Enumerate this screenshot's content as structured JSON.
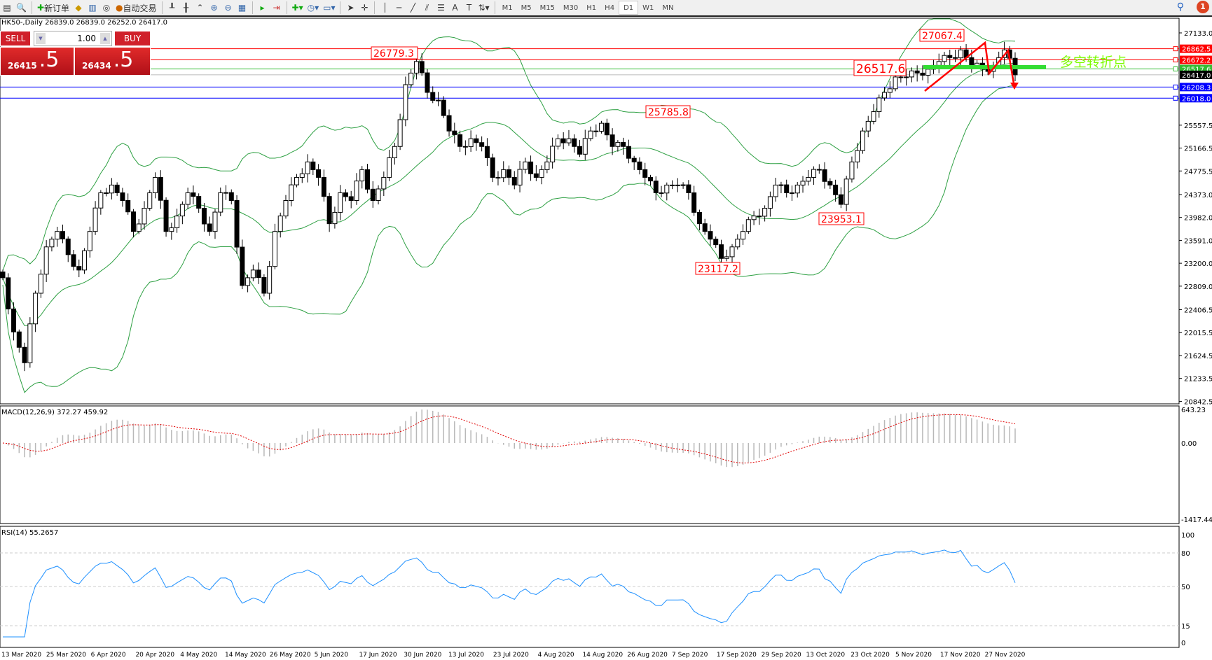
{
  "toolbar": {
    "new_order": "新订单",
    "auto_trading": "自动交易",
    "timeframes": [
      "M1",
      "M5",
      "M15",
      "M30",
      "H1",
      "H4",
      "D1",
      "W1",
      "MN"
    ],
    "active_timeframe": "D1",
    "notifications": "1"
  },
  "chart": {
    "title": "HK50-,Daily",
    "ohlc": "26839.0 26839.0 26252.0 26417.0"
  },
  "oneclick": {
    "sell_label": "SELL",
    "buy_label": "BUY",
    "lot": "1.00",
    "sell_main": "26415",
    "sell_frac": ".5",
    "buy_main": "26434",
    "buy_frac": ".5"
  },
  "colors": {
    "up_line": "#ff0000",
    "support": "#0000ff",
    "pivot": "#33bb33",
    "bands": "#2ea043",
    "macd_signal": "#e00000",
    "rsi": "#1e90ff"
  },
  "annotation": "多空转折点",
  "price_labels": [
    {
      "text": "26779.3"
    },
    {
      "text": "27067.4"
    },
    {
      "text": "26517.6"
    },
    {
      "text": "25785.8"
    },
    {
      "text": "23953.1"
    },
    {
      "text": "23117.2"
    }
  ],
  "hlines": [
    {
      "price": 26862.5,
      "label": "26862.5",
      "color": "#ff0000"
    },
    {
      "price": 26672.2,
      "label": "26672.2",
      "color": "#ff0000"
    },
    {
      "price": 26517.6,
      "label": "26517.6",
      "color": "#33bb33"
    },
    {
      "price": 26417.0,
      "label": "26417.0",
      "color": "#000000"
    },
    {
      "price": 26208.3,
      "label": "26208.3",
      "color": "#0000ff"
    },
    {
      "price": 26018.0,
      "label": "26018.0",
      "color": "#0000ff"
    }
  ],
  "price_axis": [
    "27133.0",
    "25557.5",
    "25166.5",
    "24775.5",
    "24373.0",
    "23982.0",
    "23591.0",
    "23200.0",
    "22809.0",
    "22406.5",
    "22015.5",
    "21624.5",
    "21233.5",
    "20842.5"
  ],
  "macd": {
    "label": "MACD(12,26,9) 372.27 459.92",
    "axis": [
      "643.23",
      "0.00",
      "-1417.44"
    ]
  },
  "rsi": {
    "label": "RSI(14) 55.2657",
    "axis": [
      "100",
      "80",
      "50",
      "15",
      "0"
    ]
  },
  "dates": [
    "13 Mar 2020",
    "25 Mar 2020",
    "6 Apr 2020",
    "20 Apr 2020",
    "4 May 2020",
    "14 May 2020",
    "26 May 2020",
    "5 Jun 2020",
    "17 Jun 2020",
    "30 Jun 2020",
    "13 Jul 2020",
    "23 Jul 2020",
    "4 Aug 2020",
    "14 Aug 2020",
    "26 Aug 2020",
    "7 Sep 2020",
    "17 Sep 2020",
    "29 Sep 2020",
    "13 Oct 2020",
    "23 Oct 2020",
    "5 Nov 2020",
    "17 Nov 2020",
    "27 Nov 2020"
  ],
  "chart_data": {
    "type": "candlestick",
    "closes_approx": [
      22952,
      22028,
      21501,
      22688,
      23479,
      23743,
      23347,
      23084,
      23743,
      24403,
      24535,
      24271,
      23743,
      24139,
      24666,
      23743,
      24007,
      24403,
      24139,
      23743,
      24403,
      24271,
      22820,
      23084,
      22688,
      23743,
      24271,
      24666,
      24930,
      24666,
      23875,
      24403,
      24271,
      24798,
      24271,
      24666,
      25194,
      26249,
      26645,
      26117,
      25985,
      25458,
      25194,
      25326,
      25194,
      24666,
      24798,
      24535,
      24930,
      24666,
      24930,
      25326,
      25326,
      25062,
      25458,
      25590,
      25194,
      25194,
      24930,
      24666,
      24403,
      24535,
      24535,
      24403,
      23875,
      23611,
      23282,
      23479,
      23743,
      24007,
      24139,
      24535,
      24403,
      24535,
      24666,
      24798,
      24535,
      24205,
      24930,
      25458,
      25788,
      26117,
      26381,
      26381,
      26447,
      26513,
      26645,
      26711,
      26843,
      26579,
      26513,
      26579,
      26843,
      26417
    ],
    "ylim": [
      20842.5,
      27133.0
    ]
  }
}
